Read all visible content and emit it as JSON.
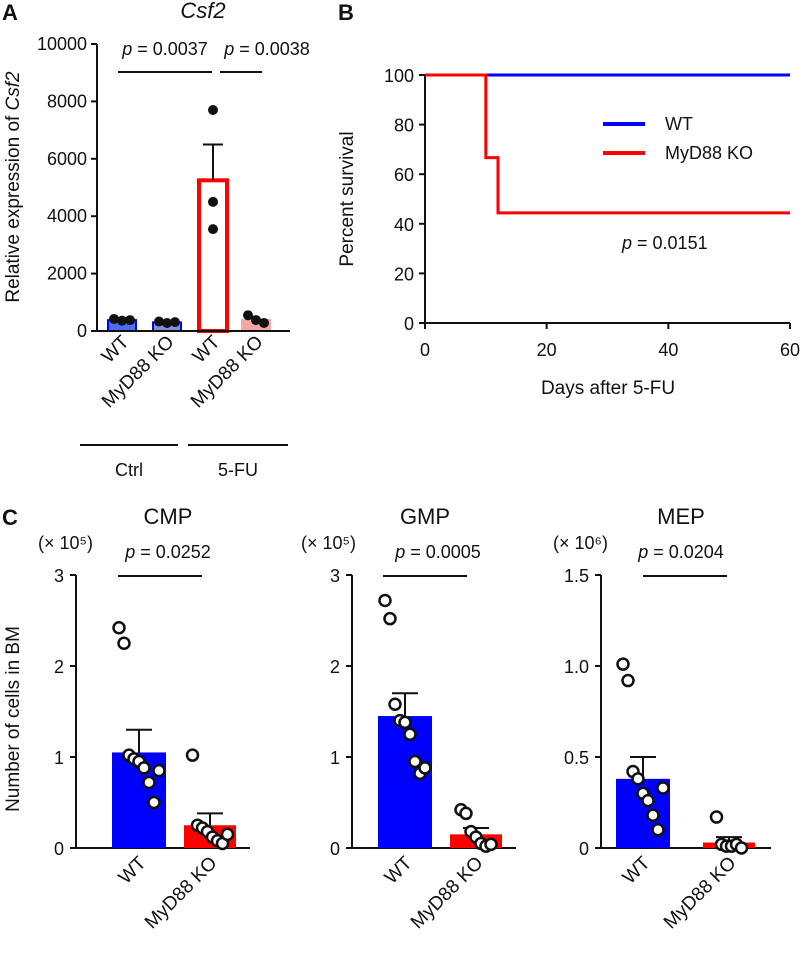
{
  "colors": {
    "wt": "#0000ff",
    "ko": "#ff0000",
    "wt_ctrl_bar": "#4f6df0",
    "ko_ctrl_bar": "#7f8fe6",
    "ko_5fu_bar": "#f4a6a6",
    "text": "#111111"
  },
  "chart_data": [
    {
      "panel": "A",
      "type": "bar",
      "title": "Csf2",
      "ylabel_prefix": "Relative expression of ",
      "ylabel_gene": "Csf2",
      "ylim": [
        0,
        10000
      ],
      "yticks": [
        0,
        2000,
        4000,
        6000,
        8000,
        10000
      ],
      "ytick_labels": [
        "0",
        "2000",
        "4000",
        "6000",
        "8000",
        "10000"
      ],
      "categories": [
        "WT",
        "MyD88 KO",
        "WT",
        "MyD88 KO"
      ],
      "groups": [
        {
          "label": "Ctrl",
          "members": [
            0,
            1
          ]
        },
        {
          "label": "5-FU",
          "members": [
            2,
            3
          ]
        }
      ],
      "values": [
        380,
        300,
        5250,
        380
      ],
      "errors": [
        0,
        0,
        1250,
        0
      ],
      "points": [
        [
          420,
          360,
          380
        ],
        [
          330,
          280,
          310
        ],
        [
          7700,
          4500,
          3550
        ],
        [
          550,
          380,
          280
        ]
      ],
      "comparisons": [
        {
          "from": 0,
          "to": 2,
          "p_label": "p",
          "p_value": "= 0.0037"
        },
        {
          "from": 2,
          "to": 3,
          "p_label": "p",
          "p_value": "= 0.0038"
        }
      ]
    },
    {
      "panel": "B",
      "type": "line",
      "subtype": "survival",
      "xlabel": "Days after 5-FU",
      "ylabel": "Percent survival",
      "xlim": [
        0,
        60
      ],
      "ylim": [
        0,
        100
      ],
      "xticks": [
        0,
        20,
        40,
        60
      ],
      "xtick_labels": [
        "0",
        "20",
        "40",
        "60"
      ],
      "yticks": [
        0,
        20,
        40,
        60,
        80,
        100
      ],
      "ytick_labels": [
        "0",
        "20",
        "40",
        "60",
        "80",
        "100"
      ],
      "series": [
        {
          "name": "WT",
          "x": [
            0,
            60
          ],
          "y": [
            100,
            100
          ]
        },
        {
          "name": "MyD88 KO",
          "x": [
            0,
            10,
            10,
            12,
            12,
            60
          ],
          "y": [
            100,
            100,
            66.7,
            66.7,
            44.4,
            44.4
          ]
        }
      ],
      "legend_position": "top-right",
      "p_label": "p",
      "p_value": "= 0.0151"
    },
    {
      "panel": "C",
      "type": "bar",
      "title": "CMP",
      "multiplier": "(× 10⁵)",
      "ylabel": "Number of cells in BM",
      "ylim": [
        0,
        3
      ],
      "yticks": [
        0,
        1,
        2,
        3
      ],
      "ytick_labels": [
        "0",
        "1",
        "2",
        "3"
      ],
      "categories": [
        "WT",
        "MyD88 KO"
      ],
      "values": [
        1.05,
        0.25
      ],
      "errors": [
        0.25,
        0.13
      ],
      "points": [
        [
          2.42,
          2.25,
          1.02,
          0.98,
          0.95,
          0.88,
          0.72,
          0.5,
          0.85
        ],
        [
          1.02,
          0.25,
          0.22,
          0.18,
          0.12,
          0.08,
          0.05,
          0.15
        ]
      ],
      "comparison": {
        "p_label": "p",
        "p_value": "= 0.0252"
      }
    },
    {
      "panel": "C",
      "type": "bar",
      "title": "GMP",
      "multiplier": "(× 10⁵)",
      "ylim": [
        0,
        3
      ],
      "yticks": [
        0,
        1,
        2,
        3
      ],
      "ytick_labels": [
        "0",
        "1",
        "2",
        "3"
      ],
      "categories": [
        "WT",
        "MyD88 KO"
      ],
      "values": [
        1.45,
        0.15
      ],
      "errors": [
        0.25,
        0.07
      ],
      "points": [
        [
          2.72,
          2.52,
          1.58,
          1.4,
          1.38,
          1.25,
          0.95,
          0.82,
          0.88
        ],
        [
          0.42,
          0.38,
          0.18,
          0.12,
          0.05,
          0.02,
          0.04
        ]
      ],
      "comparison": {
        "p_label": "p",
        "p_value": "= 0.0005"
      }
    },
    {
      "panel": "C",
      "type": "bar",
      "title": "MEP",
      "multiplier": "(× 10⁶)",
      "ylim": [
        0,
        1.5
      ],
      "yticks": [
        0,
        0.5,
        1.0,
        1.5
      ],
      "ytick_labels": [
        "0",
        "0.5",
        "1.0",
        "1.5"
      ],
      "categories": [
        "WT",
        "MyD88 KO"
      ],
      "values": [
        0.38,
        0.03
      ],
      "errors": [
        0.12,
        0.03
      ],
      "points": [
        [
          1.01,
          0.92,
          0.42,
          0.38,
          0.3,
          0.26,
          0.18,
          0.1,
          0.33
        ],
        [
          0.17,
          0.02,
          0.01,
          0.01,
          0.02,
          0.0
        ]
      ],
      "comparison": {
        "p_label": "p",
        "p_value": "= 0.0204"
      }
    }
  ]
}
